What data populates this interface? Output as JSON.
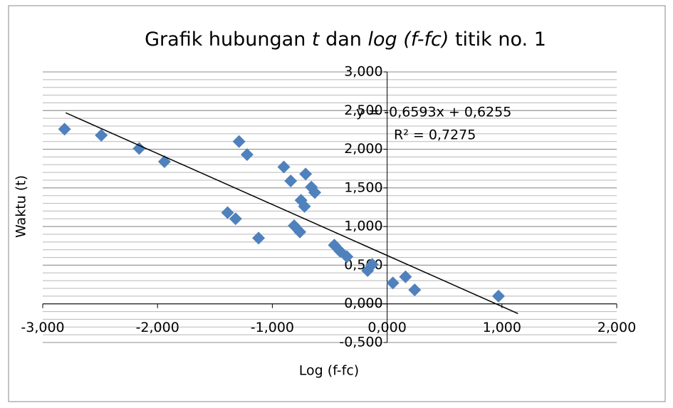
{
  "chart_data": {
    "type": "scatter",
    "title": [
      {
        "text": "Grafik hubungan ",
        "italic": false
      },
      {
        "text": "t",
        "italic": true
      },
      {
        "text": " dan ",
        "italic": false
      },
      {
        "text": "log (f-fc)",
        "italic": true
      },
      {
        "text": " titik no. 1",
        "italic": false
      }
    ],
    "xlabel": "Log (f-fc)",
    "ylabel": "Waktu (t)",
    "xlim": [
      -3,
      2
    ],
    "ylim": [
      -0.5,
      3
    ],
    "xticks": [
      {
        "value": -3,
        "label": "-3,000"
      },
      {
        "value": -2,
        "label": "-2,000"
      },
      {
        "value": -1,
        "label": "-1,000"
      },
      {
        "value": 0,
        "label": "0,000"
      },
      {
        "value": 1,
        "label": "1,000"
      },
      {
        "value": 2,
        "label": "2,000"
      }
    ],
    "yticks": [
      {
        "value": -0.5,
        "label": "-0,500"
      },
      {
        "value": 0,
        "label": "0,000"
      },
      {
        "value": 0.5,
        "label": "0,500"
      },
      {
        "value": 1,
        "label": "1,000"
      },
      {
        "value": 1.5,
        "label": "1,500"
      },
      {
        "value": 2,
        "label": "2,000"
      },
      {
        "value": 2.5,
        "label": "2,500"
      },
      {
        "value": 3,
        "label": "3,000"
      }
    ],
    "grid": true,
    "minor_grid_step": 0.1,
    "series": [
      {
        "color": "#4f81bd",
        "x": [
          -2.81,
          -2.49,
          -2.16,
          -1.94,
          -1.29,
          -1.22,
          -0.9,
          -0.71,
          -0.84,
          -0.66,
          -0.63,
          -0.75,
          -0.72,
          -1.39,
          -1.32,
          -0.81,
          -0.76,
          -1.12,
          -0.46,
          -0.41,
          -0.35,
          -0.13,
          -0.17,
          0.05,
          0.16,
          0.24,
          0.97
        ],
        "values": [
          2.26,
          2.18,
          2.01,
          1.84,
          2.1,
          1.93,
          1.77,
          1.68,
          1.59,
          1.51,
          1.44,
          1.34,
          1.26,
          1.18,
          1.1,
          1.01,
          0.93,
          0.85,
          0.76,
          0.68,
          0.61,
          0.51,
          0.43,
          0.27,
          0.35,
          0.18,
          0.1
        ]
      }
    ],
    "trendline": {
      "equation": "y = -0,6593x + 0,6255",
      "r2_label": "R² = 0,7275",
      "slope": -0.6593,
      "intercept": 0.6255,
      "x_range": [
        -2.8,
        1.14
      ]
    }
  }
}
